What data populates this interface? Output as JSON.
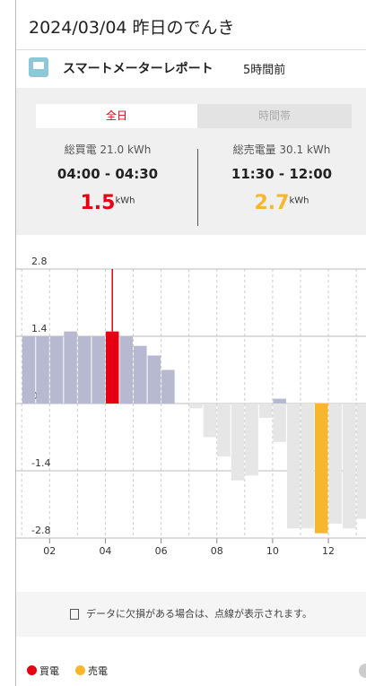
{
  "header": {
    "title": "2024/03/04 昨日のでんき"
  },
  "card": {
    "title": "スマートメーターレポート",
    "updated": "5時間前"
  },
  "tabs": [
    "全日",
    "時間帯"
  ],
  "summary": {
    "buy": {
      "total": "総買電 21.0 kWh",
      "range": "04:00 - 04:30",
      "value": "1.5",
      "unit": "kWh"
    },
    "sell": {
      "total": "総売電量 30.1 kWh",
      "range": "11:30 - 12:00",
      "value": "2.7",
      "unit": "kWh"
    }
  },
  "chart_data": {
    "type": "bar",
    "x": [
      1,
      1.5,
      2,
      2.5,
      3,
      3.5,
      4,
      4.5,
      5,
      5.5,
      6,
      6.5,
      7,
      7.5,
      8,
      8.5,
      9,
      9.5,
      10,
      10.5,
      11,
      11.5,
      12,
      12.5,
      13
    ],
    "bar_width": 0.5,
    "series": [
      {
        "name": "買電",
        "color": "#e60012",
        "bar_color": "#b6b9cf",
        "selected_index": 6,
        "values": [
          1.4,
          1.4,
          1.4,
          1.5,
          1.4,
          1.4,
          1.5,
          1.4,
          1.2,
          1.0,
          0.7,
          null,
          null,
          null,
          null,
          null,
          null,
          null,
          0.1,
          null,
          null,
          null,
          null,
          null,
          null
        ]
      },
      {
        "name": "売電",
        "color": "#f8b62d",
        "bar_color": "#e6e6e6",
        "selected_index": 21,
        "values": [
          null,
          null,
          null,
          null,
          null,
          null,
          null,
          null,
          null,
          null,
          null,
          null,
          -0.1,
          -0.7,
          -1.1,
          -1.6,
          -1.5,
          -0.3,
          -0.8,
          -2.6,
          -2.6,
          -2.7,
          -2.5,
          -2.6,
          -2.4
        ]
      }
    ],
    "xlim": [
      0.8,
      13.35
    ],
    "xticks": [
      {
        "value": 2,
        "label": "02"
      },
      {
        "value": 4,
        "label": "04"
      },
      {
        "value": 6,
        "label": "06"
      },
      {
        "value": 8,
        "label": "08"
      },
      {
        "value": 10,
        "label": "10"
      },
      {
        "value": 12,
        "label": "12"
      }
    ],
    "minor_xticks": [
      1,
      3,
      5,
      7,
      9,
      11,
      13
    ],
    "ylim": [
      -2.8,
      2.8
    ],
    "yticks": [
      2.8,
      1.4,
      {
        "value": 0,
        "label": "0.0"
      },
      -1.4,
      -2.8
    ],
    "grid": true
  },
  "note": "データに欠損がある場合は、点線が表示されます。"
}
